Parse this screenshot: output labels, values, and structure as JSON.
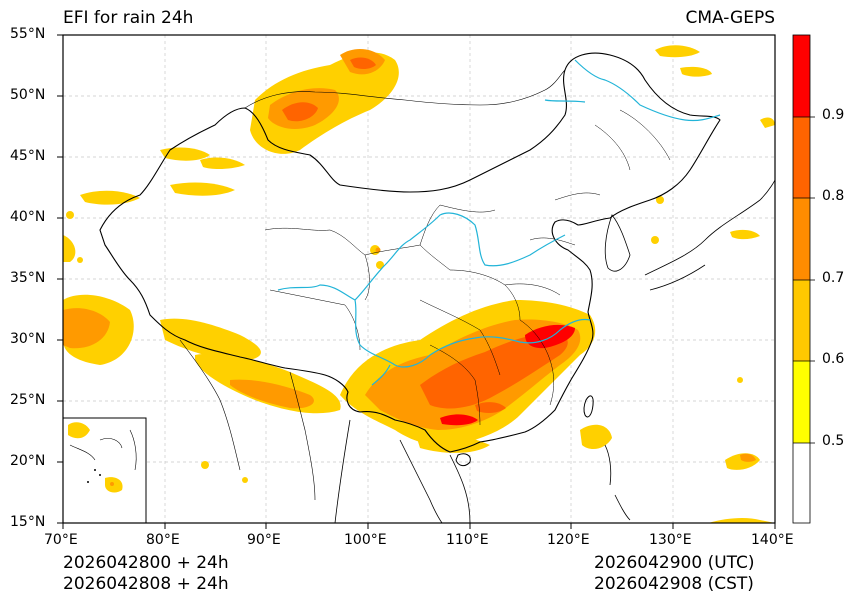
{
  "map": {
    "title_left": "EFI for rain 24h",
    "title_right": "CMA-GEPS",
    "lat_labels": [
      "55°N",
      "50°N",
      "45°N",
      "40°N",
      "35°N",
      "30°N",
      "25°N",
      "20°N",
      "15°N"
    ],
    "lon_labels": [
      "70°E",
      "80°E",
      "90°E",
      "100°E",
      "110°E",
      "120°E",
      "130°E",
      "140°E"
    ],
    "footer": {
      "init_utc": "2026042800 + 24h",
      "init_cst": "2026042808 + 24h",
      "valid_utc": "2026042900 (UTC)",
      "valid_cst": "2026042908 (CST)"
    },
    "extent": {
      "lon_min": 70,
      "lon_max": 140,
      "lat_min": 15,
      "lat_max": 55
    },
    "gridlines": true
  },
  "colorbar": {
    "levels": [
      0.5,
      0.6,
      0.7,
      0.8,
      0.9
    ],
    "labels": [
      "0.5",
      "0.6",
      "0.7",
      "0.8",
      "0.9"
    ],
    "colors": [
      "#ffffff",
      "#ffff00",
      "#ffc800",
      "#ff8c00",
      "#ff6400",
      "#ff0000"
    ]
  },
  "colors": {
    "river": "#22b4d8",
    "border": "#000000",
    "grid": "#c8c8c8"
  }
}
